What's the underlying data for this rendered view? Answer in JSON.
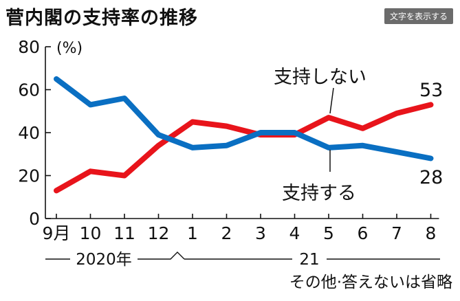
{
  "chart_data": {
    "type": "line",
    "title": "菅内閣の支持率の推移",
    "categories": [
      "9月",
      "10",
      "11",
      "12",
      "1",
      "2",
      "3",
      "4",
      "5",
      "6",
      "7",
      "8"
    ],
    "year_labels": {
      "first": "2020年",
      "second": "21"
    },
    "ylabel": "(%)",
    "ylim": [
      0,
      80
    ],
    "yticks": [
      "0",
      "20",
      "40",
      "60",
      "80"
    ],
    "grid": false,
    "series": [
      {
        "name": "支持しない",
        "color": "#e8141b",
        "values": [
          13,
          22,
          20,
          34,
          45,
          43,
          39,
          39,
          47,
          42,
          49,
          53
        ],
        "end_label": "53"
      },
      {
        "name": "支持する",
        "color": "#0a6fc2",
        "values": [
          65,
          53,
          56,
          39,
          33,
          34,
          40,
          40,
          33,
          34,
          31,
          28
        ],
        "end_label": "28"
      }
    ],
    "note": "その他·答えないは省略"
  },
  "ui": {
    "show_text_button": "文字を表示する"
  }
}
